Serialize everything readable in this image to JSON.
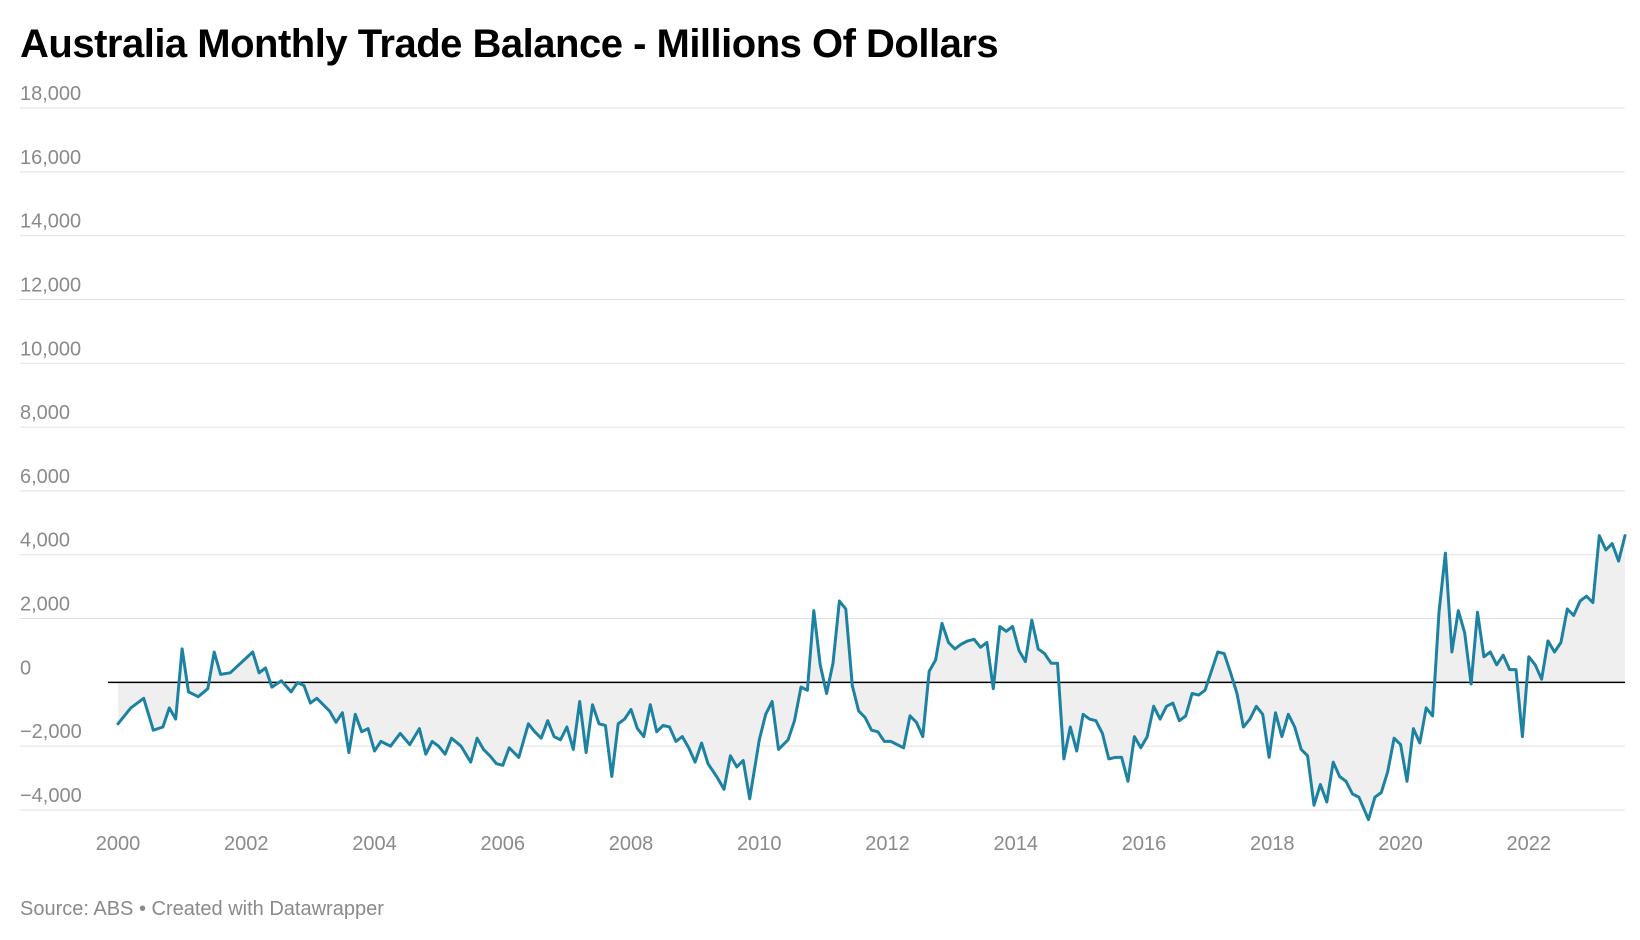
{
  "chart_data": {
    "type": "area",
    "title": "Australia Monthly Trade Balance - Millions Of Dollars",
    "source": "Source: ABS • Created with Datawrapper",
    "xlabel": "",
    "ylabel": "",
    "xlim": [
      2000,
      2023.5
    ],
    "ylim": [
      -4000,
      18000
    ],
    "y_ticks": [
      -4000,
      -2000,
      0,
      2000,
      4000,
      6000,
      8000,
      10000,
      12000,
      14000,
      16000,
      18000
    ],
    "y_tick_labels": [
      "−4,000",
      "−2,000",
      "0",
      "2,000",
      "4,000",
      "6,000",
      "8,000",
      "10,000",
      "12,000",
      "14,000",
      "16,000",
      "18,000"
    ],
    "x_ticks": [
      2000,
      2002,
      2004,
      2006,
      2008,
      2010,
      2012,
      2014,
      2016,
      2018,
      2020,
      2022
    ],
    "x_tick_labels": [
      "2000",
      "2002",
      "2004",
      "2006",
      "2008",
      "2010",
      "2012",
      "2014",
      "2016",
      "2018",
      "2020",
      "2022"
    ],
    "grid": true,
    "legend": "none",
    "line_color": "#1d81a2",
    "fill_color": "#efefef",
    "zero_line_color": "#000000",
    "series": [
      {
        "values": [
          [
            2000.0,
            -1300
          ],
          [
            2000.2,
            -800
          ],
          [
            2000.4,
            -500
          ],
          [
            2000.55,
            -1500
          ],
          [
            2000.7,
            -1400
          ],
          [
            2000.8,
            -800
          ],
          [
            2000.9,
            -1150
          ],
          [
            2001.0,
            1050
          ],
          [
            2001.1,
            -300
          ],
          [
            2001.25,
            -450
          ],
          [
            2001.4,
            -200
          ],
          [
            2001.5,
            950
          ],
          [
            2001.6,
            250
          ],
          [
            2001.75,
            300
          ],
          [
            2002.1,
            950
          ],
          [
            2002.2,
            300
          ],
          [
            2002.3,
            450
          ],
          [
            2002.4,
            -150
          ],
          [
            2002.55,
            50
          ],
          [
            2002.7,
            -300
          ],
          [
            2002.8,
            0
          ],
          [
            2002.9,
            -100
          ],
          [
            2003.0,
            -650
          ],
          [
            2003.1,
            -500
          ],
          [
            2003.2,
            -700
          ],
          [
            2003.3,
            -900
          ],
          [
            2003.4,
            -1250
          ],
          [
            2003.5,
            -950
          ],
          [
            2003.6,
            -2200
          ],
          [
            2003.7,
            -1000
          ],
          [
            2003.8,
            -1550
          ],
          [
            2003.9,
            -1450
          ],
          [
            2004.0,
            -2150
          ],
          [
            2004.1,
            -1850
          ],
          [
            2004.25,
            -2000
          ],
          [
            2004.4,
            -1600
          ],
          [
            2004.55,
            -1950
          ],
          [
            2004.7,
            -1450
          ],
          [
            2004.8,
            -2250
          ],
          [
            2004.9,
            -1850
          ],
          [
            2005.0,
            -2000
          ],
          [
            2005.1,
            -2250
          ],
          [
            2005.2,
            -1750
          ],
          [
            2005.35,
            -2000
          ],
          [
            2005.5,
            -2500
          ],
          [
            2005.6,
            -1750
          ],
          [
            2005.7,
            -2100
          ],
          [
            2005.8,
            -2300
          ],
          [
            2005.9,
            -2550
          ],
          [
            2006.0,
            -2600
          ],
          [
            2006.1,
            -2050
          ],
          [
            2006.25,
            -2350
          ],
          [
            2006.4,
            -1300
          ],
          [
            2006.5,
            -1550
          ],
          [
            2006.6,
            -1750
          ],
          [
            2006.7,
            -1200
          ],
          [
            2006.8,
            -1700
          ],
          [
            2006.9,
            -1800
          ],
          [
            2007.0,
            -1400
          ],
          [
            2007.1,
            -2100
          ],
          [
            2007.2,
            -600
          ],
          [
            2007.3,
            -2200
          ],
          [
            2007.4,
            -700
          ],
          [
            2007.5,
            -1300
          ],
          [
            2007.6,
            -1350
          ],
          [
            2007.7,
            -2950
          ],
          [
            2007.8,
            -1300
          ],
          [
            2007.9,
            -1150
          ],
          [
            2008.0,
            -850
          ],
          [
            2008.1,
            -1450
          ],
          [
            2008.2,
            -1700
          ],
          [
            2008.3,
            -700
          ],
          [
            2008.4,
            -1550
          ],
          [
            2008.5,
            -1350
          ],
          [
            2008.6,
            -1400
          ],
          [
            2008.7,
            -1850
          ],
          [
            2008.8,
            -1700
          ],
          [
            2008.9,
            -2050
          ],
          [
            2009.0,
            -2500
          ],
          [
            2009.1,
            -1900
          ],
          [
            2009.2,
            -2550
          ],
          [
            2009.35,
            -3000
          ],
          [
            2009.45,
            -3350
          ],
          [
            2009.55,
            -2300
          ],
          [
            2009.65,
            -2650
          ],
          [
            2009.75,
            -2450
          ],
          [
            2009.85,
            -3650
          ],
          [
            2010.0,
            -1800
          ],
          [
            2010.1,
            -1000
          ],
          [
            2010.2,
            -600
          ],
          [
            2010.3,
            -2100
          ],
          [
            2010.45,
            -1800
          ],
          [
            2010.55,
            -1200
          ],
          [
            2010.65,
            -150
          ],
          [
            2010.75,
            -250
          ],
          [
            2010.85,
            2250
          ],
          [
            2010.95,
            550
          ],
          [
            2011.05,
            -350
          ],
          [
            2011.15,
            600
          ],
          [
            2011.25,
            2550
          ],
          [
            2011.35,
            2300
          ],
          [
            2011.45,
            -100
          ],
          [
            2011.55,
            -900
          ],
          [
            2011.65,
            -1100
          ],
          [
            2011.75,
            -1500
          ],
          [
            2011.85,
            -1550
          ],
          [
            2011.95,
            -1850
          ],
          [
            2012.05,
            -1850
          ],
          [
            2012.15,
            -1950
          ],
          [
            2012.25,
            -2050
          ],
          [
            2012.35,
            -1050
          ],
          [
            2012.45,
            -1250
          ],
          [
            2012.55,
            -1700
          ],
          [
            2012.65,
            350
          ],
          [
            2012.75,
            700
          ],
          [
            2012.85,
            1850
          ],
          [
            2012.95,
            1250
          ],
          [
            2013.05,
            1050
          ],
          [
            2013.15,
            1200
          ],
          [
            2013.25,
            1300
          ],
          [
            2013.35,
            1350
          ],
          [
            2013.45,
            1100
          ],
          [
            2013.55,
            1250
          ],
          [
            2013.65,
            -200
          ],
          [
            2013.75,
            1750
          ],
          [
            2013.85,
            1600
          ],
          [
            2013.95,
            1750
          ],
          [
            2014.05,
            1000
          ],
          [
            2014.15,
            650
          ],
          [
            2014.25,
            1950
          ],
          [
            2014.35,
            1050
          ],
          [
            2014.45,
            900
          ],
          [
            2014.55,
            600
          ],
          [
            2014.65,
            600
          ],
          [
            2014.75,
            -2400
          ],
          [
            2014.85,
            -1400
          ],
          [
            2014.95,
            -2150
          ],
          [
            2015.05,
            -1000
          ],
          [
            2015.15,
            -1150
          ],
          [
            2015.25,
            -1200
          ],
          [
            2015.35,
            -1600
          ],
          [
            2015.45,
            -2400
          ],
          [
            2015.55,
            -2350
          ],
          [
            2015.65,
            -2350
          ],
          [
            2015.75,
            -3100
          ],
          [
            2015.85,
            -1700
          ],
          [
            2015.95,
            -2050
          ],
          [
            2016.05,
            -1700
          ],
          [
            2016.15,
            -750
          ],
          [
            2016.25,
            -1150
          ],
          [
            2016.35,
            -750
          ],
          [
            2016.45,
            -650
          ],
          [
            2016.55,
            -1200
          ],
          [
            2016.65,
            -1050
          ],
          [
            2016.75,
            -350
          ],
          [
            2016.85,
            -400
          ],
          [
            2016.95,
            -250
          ],
          [
            2017.05,
            350
          ],
          [
            2017.15,
            950
          ],
          [
            2017.25,
            900
          ],
          [
            2017.35,
            300
          ],
          [
            2017.45,
            -350
          ],
          [
            2017.55,
            -1400
          ],
          [
            2017.65,
            -1150
          ],
          [
            2017.75,
            -750
          ],
          [
            2017.85,
            -1000
          ],
          [
            2017.95,
            -2350
          ],
          [
            2018.05,
            -950
          ],
          [
            2018.15,
            -1700
          ],
          [
            2018.25,
            -1000
          ],
          [
            2018.35,
            -1400
          ],
          [
            2018.45,
            -2100
          ],
          [
            2018.55,
            -2300
          ],
          [
            2018.65,
            -3850
          ],
          [
            2018.75,
            -3200
          ],
          [
            2018.85,
            -3750
          ],
          [
            2018.95,
            -2500
          ],
          [
            2019.05,
            -2950
          ],
          [
            2019.15,
            -3100
          ],
          [
            2019.25,
            -3500
          ],
          [
            2019.35,
            -3600
          ],
          [
            2019.5,
            -4300
          ],
          [
            2019.6,
            -3600
          ],
          [
            2019.7,
            -3450
          ],
          [
            2019.8,
            -2800
          ],
          [
            2019.9,
            -1750
          ],
          [
            2020.0,
            -1950
          ],
          [
            2020.1,
            -3100
          ],
          [
            2020.2,
            -1450
          ],
          [
            2020.3,
            -1900
          ],
          [
            2020.4,
            -800
          ],
          [
            2020.5,
            -1050
          ],
          [
            2020.6,
            2200
          ],
          [
            2020.7,
            4050
          ],
          [
            2020.8,
            950
          ],
          [
            2020.9,
            2250
          ],
          [
            2021.0,
            1550
          ],
          [
            2021.1,
            -50
          ],
          [
            2021.2,
            2200
          ],
          [
            2021.3,
            800
          ],
          [
            2021.4,
            950
          ],
          [
            2021.5,
            550
          ],
          [
            2021.6,
            850
          ],
          [
            2021.7,
            400
          ],
          [
            2021.8,
            400
          ],
          [
            2021.9,
            -1700
          ],
          [
            2022.0,
            800
          ],
          [
            2022.1,
            550
          ],
          [
            2022.2,
            100
          ],
          [
            2022.3,
            1300
          ],
          [
            2022.4,
            950
          ],
          [
            2022.5,
            1250
          ],
          [
            2022.6,
            2300
          ],
          [
            2022.7,
            2100
          ],
          [
            2022.8,
            2550
          ],
          [
            2022.9,
            2700
          ],
          [
            2023.0,
            2500
          ],
          [
            2023.1,
            4600
          ],
          [
            2023.2,
            4150
          ],
          [
            2023.3,
            4350
          ],
          [
            2023.4,
            3800
          ],
          [
            2023.5,
            4600
          ]
        ]
      }
    ]
  }
}
